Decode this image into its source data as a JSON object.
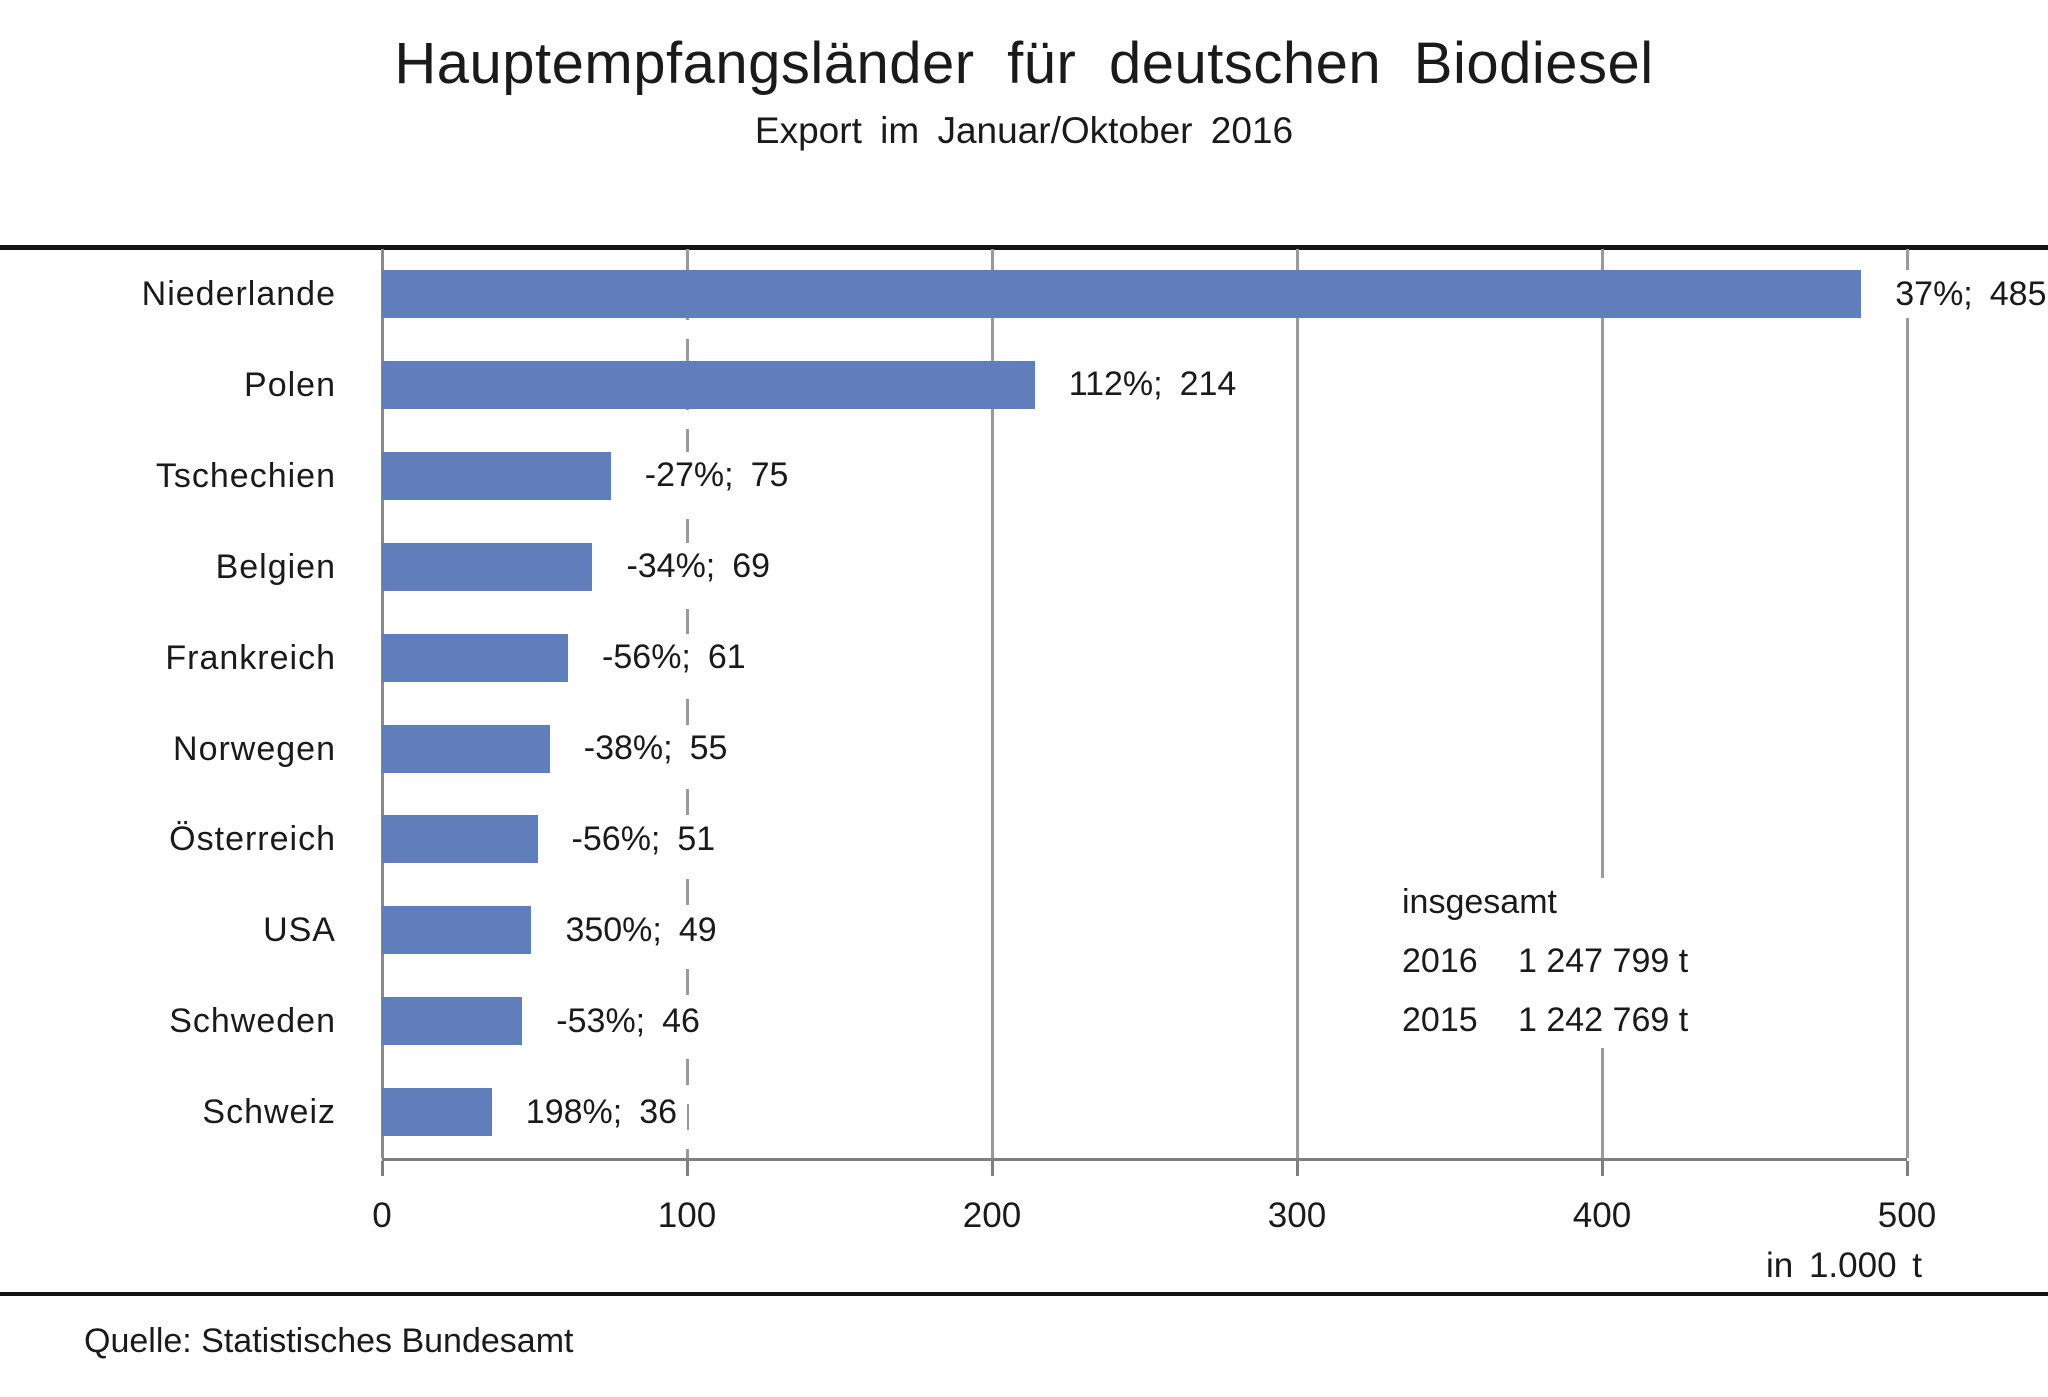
{
  "title": "Hauptempfangsländer für deutschen Biodiesel",
  "subtitle": "Export im Januar/Oktober 2016",
  "source": "Quelle: Statistisches Bundesamt",
  "axis": {
    "unit_label": "in 1.000 t"
  },
  "totals": {
    "heading": "insgesamt",
    "rows": [
      {
        "year": "2016",
        "value": "1 247 799 t"
      },
      {
        "year": "2015",
        "value": "1 242 769 t"
      }
    ]
  },
  "colors": {
    "bar": "#5f7ebb",
    "grid": "#9a9a9a",
    "axis": "#7f7f7f",
    "rule": "#141414",
    "text": "#1a1a1a"
  },
  "chart_data": {
    "type": "bar",
    "orientation": "horizontal",
    "title": "Hauptempfangsländer für deutschen Biodiesel",
    "subtitle": "Export im Januar/Oktober 2016",
    "xlabel": "in 1.000 t",
    "xlim": [
      0,
      500
    ],
    "x_ticks": [
      0,
      100,
      200,
      300,
      400,
      500
    ],
    "grid": {
      "dashed_at": [
        100
      ],
      "solid_at": [
        0,
        200,
        300,
        400,
        500
      ]
    },
    "legend": null,
    "categories": [
      "Niederlande",
      "Polen",
      "Tschechien",
      "Belgien",
      "Frankreich",
      "Norwegen",
      "Österreich",
      "USA",
      "Schweden",
      "Schweiz"
    ],
    "values": [
      485,
      214,
      75,
      69,
      61,
      55,
      51,
      49,
      46,
      36
    ],
    "pct_change": [
      "37%",
      "112%",
      "-27%",
      "-34%",
      "-56%",
      "-38%",
      "-56%",
      "350%",
      "-53%",
      "198%"
    ],
    "bar_labels": [
      "37%; 485",
      "112%; 214",
      "-27%; 75",
      "-34%; 69",
      "-56%; 61",
      "-38%; 55",
      "-56%; 51",
      "350%; 49",
      "-53%; 46",
      "198%; 36"
    ],
    "annotations": {
      "heading": "insgesamt",
      "lines": [
        "2016 1 247 799 t",
        "2015 1 242 769 t"
      ]
    }
  }
}
